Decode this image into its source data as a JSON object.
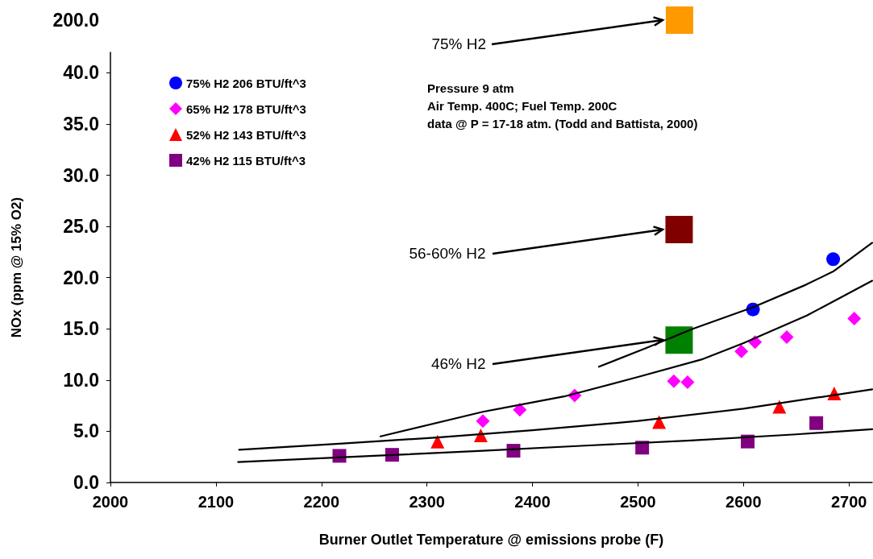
{
  "chart_data": [
    {
      "type": "other",
      "color": "#ff9900",
      "annotations": [
        "200.0",
        "75% H2"
      ]
    },
    {
      "type": "scatter",
      "xlim": [
        2000,
        2722
      ],
      "ylim": [
        0,
        42
      ],
      "xticks": [
        2000,
        2100,
        2200,
        2300,
        2400,
        2500,
        2600,
        2700
      ],
      "yticks": [
        {
          "value": 0,
          "label": "0.0"
        },
        {
          "value": 5,
          "label": "5.0"
        },
        {
          "value": 10,
          "label": "10.0"
        },
        {
          "value": 15,
          "label": "15.0"
        },
        {
          "value": 20,
          "label": "20.0"
        },
        {
          "value": 25,
          "label": "25.0"
        },
        {
          "value": 30,
          "label": "30.0"
        },
        {
          "value": 35,
          "label": "35.0"
        },
        {
          "value": 40,
          "label": "40.0"
        }
      ],
      "xlabel": "Burner Outlet Temperature @ emissions probe (F)",
      "ylabel": "NOx (ppm @ 15% O2)",
      "legend": "top left",
      "series": [
        {
          "name": "75% H2 206 BTU/ft^3",
          "color": "#0000ff",
          "marker": "circle",
          "x": [
            2609,
            2685
          ],
          "values": [
            16.9,
            21.8
          ]
        },
        {
          "name": "65% H2 178 BTU/ft^3",
          "color": "#ff00ff",
          "marker": "diamond",
          "x": [
            2353,
            2388,
            2440,
            2534,
            2547,
            2598,
            2611,
            2641,
            2705
          ],
          "values": [
            6.0,
            7.1,
            8.5,
            9.9,
            9.8,
            12.8,
            13.7,
            14.2,
            16.0
          ]
        },
        {
          "name": "52% H2 143 BTU/ft^3",
          "color": "#ff0000",
          "marker": "triangle",
          "x": [
            2310,
            2351,
            2520,
            2634,
            2686
          ],
          "values": [
            4.0,
            4.6,
            5.9,
            7.4,
            8.7
          ]
        },
        {
          "name": "42% H2 115 BTU/ft^3",
          "color": "#800080",
          "marker": "square",
          "x": [
            2217,
            2267,
            2382,
            2504,
            2604,
            2669
          ],
          "values": [
            2.6,
            2.7,
            3.1,
            3.4,
            4.0,
            5.8
          ]
        },
        {
          "type": "line",
          "color": "#000000",
          "marker": "none",
          "x": [
            2463,
            2507,
            2552,
            2609,
            2659,
            2685,
            2722
          ],
          "values": [
            11.3,
            13.1,
            15.0,
            17.1,
            19.3,
            20.6,
            23.4
          ]
        },
        {
          "type": "line",
          "color": "#000000",
          "marker": "none",
          "x": [
            2256,
            2353,
            2430,
            2500,
            2560,
            2600,
            2660,
            2722
          ],
          "values": [
            4.5,
            6.9,
            8.4,
            10.3,
            12.0,
            13.6,
            16.3,
            19.7
          ]
        },
        {
          "type": "line",
          "color": "#000000",
          "marker": "none",
          "x": [
            2122,
            2220,
            2310,
            2400,
            2500,
            2600,
            2722
          ],
          "values": [
            3.2,
            3.8,
            4.4,
            5.1,
            6.0,
            7.2,
            9.1
          ]
        },
        {
          "type": "line",
          "color": "#000000",
          "marker": "none",
          "x": [
            2121,
            2250,
            2353,
            2450,
            2550,
            2650,
            2722
          ],
          "values": [
            2.0,
            2.6,
            3.1,
            3.6,
            4.1,
            4.7,
            5.2
          ]
        },
        {
          "color": "#800000",
          "marker": "square",
          "x": [
            2539
          ],
          "values": [
            24.7
          ]
        },
        {
          "color": "#008000",
          "marker": "square",
          "x": [
            2539
          ],
          "values": [
            13.9
          ]
        }
      ],
      "annotations": [
        "Pressure 9 atm",
        "Air Temp. 400C; Fuel Temp. 200C",
        "data @ P = 17-18 atm. (Todd and Battista, 2000)",
        {
          "text": "56-60% H2",
          "x": 2523,
          "y": 24.7
        },
        {
          "text": "46% H2",
          "x": 2523,
          "y": 13.9
        }
      ]
    }
  ]
}
